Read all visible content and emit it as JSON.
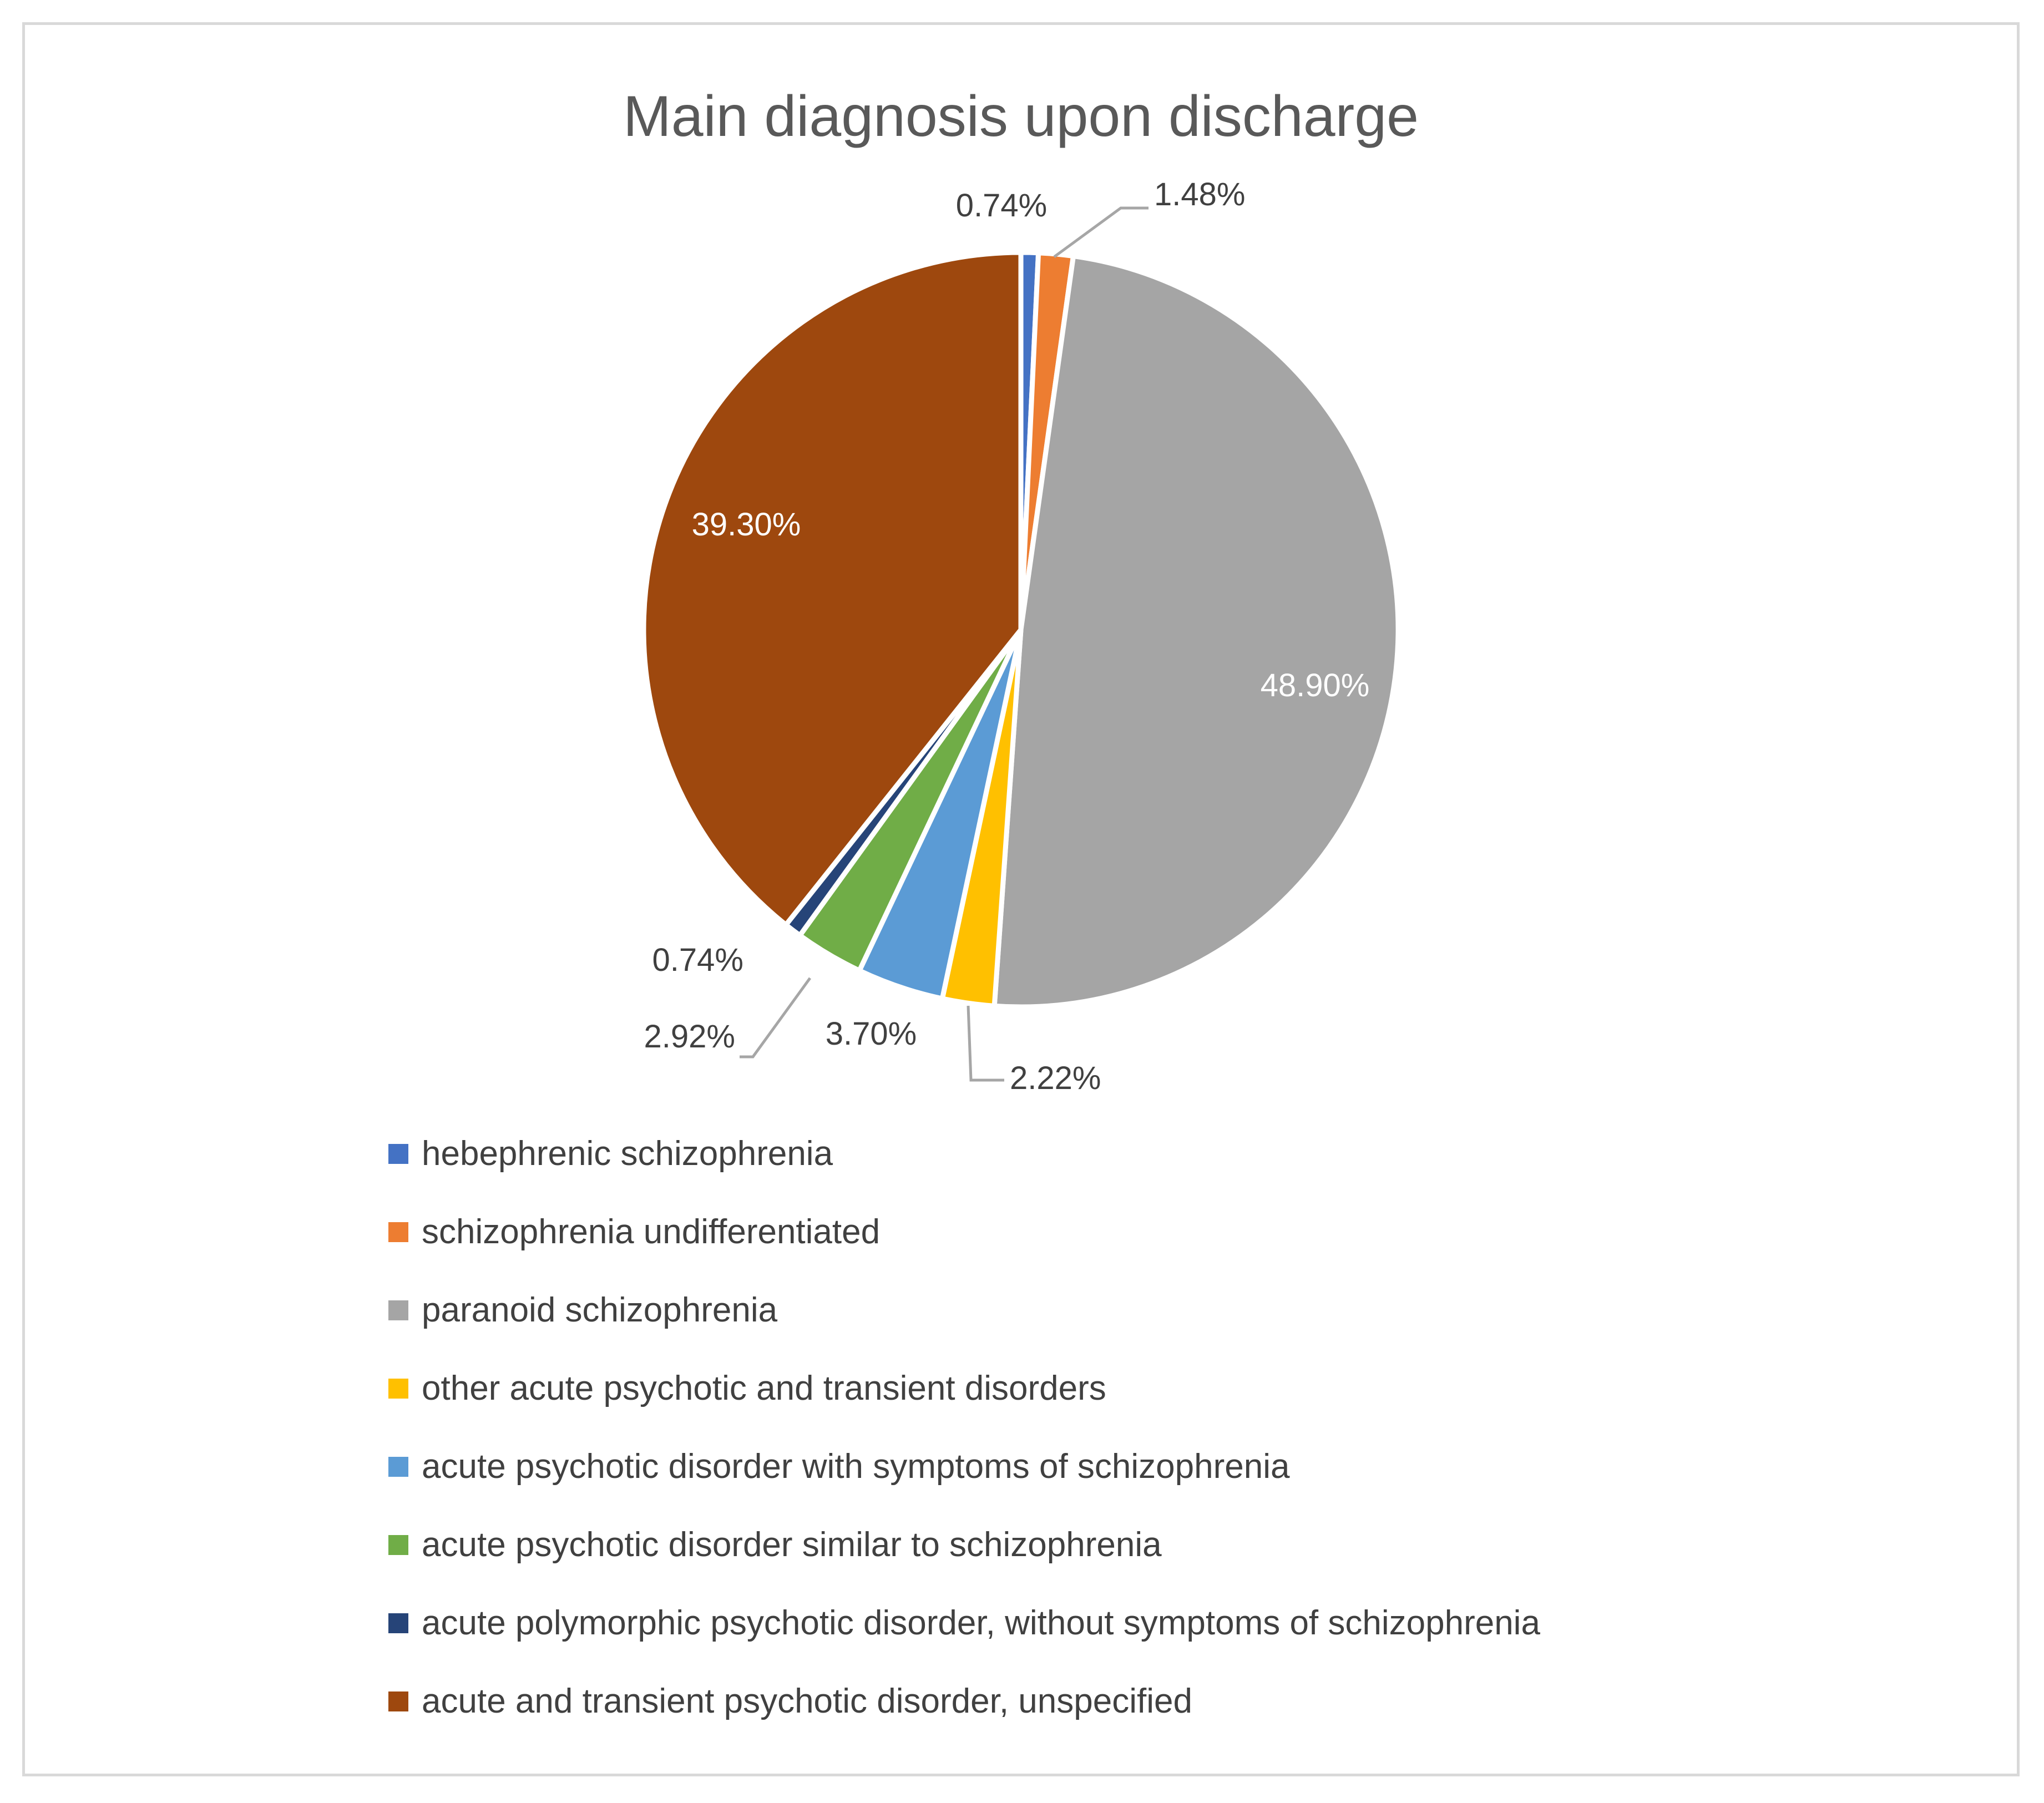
{
  "chart_data": {
    "type": "pie",
    "title": "Main diagnosis upon discharge",
    "legend_position": "bottom",
    "slices": [
      {
        "name": "hebephrenic schizophrenia",
        "value": 0.74,
        "label": "0.74%",
        "color": "#4472c4"
      },
      {
        "name": "schizophrenia undifferentiated",
        "value": 1.48,
        "label": "1.48%",
        "color": "#ed7d31"
      },
      {
        "name": "paranoid schizophrenia",
        "value": 48.9,
        "label": "48.90%",
        "color": "#a5a5a5"
      },
      {
        "name": "other acute psychotic and transient disorders",
        "value": 2.22,
        "label": "2.22%",
        "color": "#ffc000"
      },
      {
        "name": "acute psychotic disorder with symptoms of schizophrenia",
        "value": 3.7,
        "label": "3.70%",
        "color": "#5b9bd5"
      },
      {
        "name": "acute psychotic disorder similar to schizophrenia",
        "value": 2.92,
        "label": "2.92%",
        "color": "#70ad47"
      },
      {
        "name": "acute polymorphic psychotic disorder, without symptoms of schizophrenia",
        "value": 0.74,
        "label": "0.74%",
        "color": "#264478"
      },
      {
        "name": "acute and transient psychotic disorder, unspecified",
        "value": 39.3,
        "label": "39.30%",
        "color": "#9e480e"
      }
    ]
  }
}
